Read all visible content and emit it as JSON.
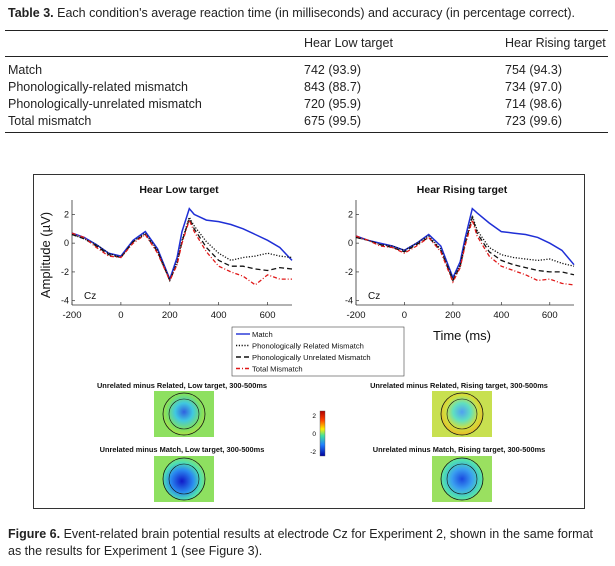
{
  "table": {
    "caption_label": "Table 3.",
    "caption_text": "Each condition's average reaction time (in milliseconds) and accuracy (in percentage correct).",
    "columns": [
      "Hear Low target",
      "Hear Rising target"
    ],
    "rows": [
      {
        "label": "Match",
        "low": "742 (93.9)",
        "rising": "754 (94.3)"
      },
      {
        "label": "Phonologically-related mismatch",
        "low": "843 (88.7)",
        "rising": "734 (97.0)"
      },
      {
        "label": "Phonologically-unrelated mismatch",
        "low": "720 (95.9)",
        "rising": "714 (98.6)"
      },
      {
        "label": "Total mismatch",
        "low": "675 (99.5)",
        "rising": "723 (99.6)"
      }
    ]
  },
  "figure": {
    "ylabel": "Amplitude (µV)",
    "xlabel": "Time (ms)",
    "electrode": "Cz",
    "colorbar_ticks": [
      "2",
      "0",
      "-2"
    ],
    "topo_titles": [
      "Unrelated minus Related, Low target, 300-500ms",
      "Unrelated minus Related, Rising target, 300-500ms",
      "Unrelated minus Match, Low target, 300-500ms",
      "Unrelated minus Match, Rising target, 300-500ms"
    ],
    "caption_label": "Figure 6.",
    "caption_text": "Event-related brain potential results at electrode Cz for Experiment 2, shown in the same format as the results for Experiment 1 (see Figure 3)."
  },
  "chart_data": [
    {
      "type": "line",
      "title": "Hear Low target",
      "xlabel": "",
      "ylabel": "Amplitude (µV)",
      "xlim": [
        -200,
        700
      ],
      "ylim": [
        -4.3,
        3
      ],
      "xticks": [
        -200,
        0,
        200,
        400,
        600
      ],
      "yticks": [
        2,
        0,
        -2,
        -4
      ],
      "legend_position": "bottom-center",
      "x": [
        -200,
        -150,
        -100,
        -50,
        0,
        50,
        100,
        150,
        200,
        230,
        250,
        280,
        300,
        350,
        400,
        450,
        500,
        550,
        600,
        650,
        700
      ],
      "series": [
        {
          "name": "Match",
          "color": "#1f2fd6",
          "dash": "solid",
          "values": [
            0.7,
            0.4,
            -0.1,
            -0.7,
            -0.9,
            0.2,
            0.8,
            -0.4,
            -2.5,
            -1.0,
            0.8,
            2.4,
            2.0,
            1.6,
            1.5,
            1.3,
            1.0,
            0.6,
            0.2,
            -0.3,
            -1.2
          ]
        },
        {
          "name": "Phonologically Related Mismatch",
          "color": "#111111",
          "dash": "dotted",
          "values": [
            0.6,
            0.3,
            -0.1,
            -0.7,
            -1.0,
            0.1,
            0.7,
            -0.5,
            -2.6,
            -1.3,
            0.2,
            1.8,
            1.2,
            0.1,
            -0.7,
            -1.2,
            -1.0,
            -0.9,
            -0.7,
            -0.9,
            -1.0
          ]
        },
        {
          "name": "Phonologically Unrelated Mismatch",
          "color": "#111111",
          "dash": "dashed",
          "values": [
            0.6,
            0.3,
            -0.2,
            -0.8,
            -1.0,
            0.1,
            0.6,
            -0.6,
            -2.6,
            -1.4,
            0.1,
            1.7,
            1.0,
            -0.3,
            -1.2,
            -1.6,
            -1.6,
            -1.8,
            -1.9,
            -1.7,
            -1.8
          ]
        },
        {
          "name": "Total Mismatch",
          "color": "#e01818",
          "dash": "dashdot",
          "values": [
            0.7,
            0.4,
            -0.3,
            -0.9,
            -1.0,
            0.0,
            0.6,
            -0.7,
            -2.6,
            -1.5,
            0.0,
            1.6,
            0.8,
            -0.6,
            -1.6,
            -2.0,
            -2.3,
            -2.9,
            -2.2,
            -2.5,
            -2.5
          ]
        }
      ]
    },
    {
      "type": "line",
      "title": "Hear Rising target",
      "xlabel": "Time (ms)",
      "ylabel": "",
      "xlim": [
        -200,
        700
      ],
      "ylim": [
        -4.3,
        3
      ],
      "xticks": [
        -200,
        0,
        200,
        400,
        600
      ],
      "yticks": [
        2,
        0,
        -2,
        -4
      ],
      "legend_position": "bottom-center",
      "x": [
        -200,
        -150,
        -100,
        -50,
        0,
        50,
        100,
        150,
        200,
        230,
        250,
        280,
        300,
        350,
        400,
        450,
        500,
        550,
        600,
        650,
        700
      ],
      "series": [
        {
          "name": "Match",
          "color": "#1f2fd6",
          "dash": "solid",
          "values": [
            0.5,
            0.2,
            0.0,
            -0.2,
            -0.5,
            0.0,
            0.6,
            -0.2,
            -2.4,
            -1.3,
            0.3,
            2.4,
            2.1,
            1.4,
            0.8,
            0.7,
            0.6,
            0.4,
            0.0,
            -0.5,
            -1.5
          ]
        },
        {
          "name": "Phonologically Related Mismatch",
          "color": "#111111",
          "dash": "dotted",
          "values": [
            0.4,
            0.2,
            -0.1,
            -0.2,
            -0.5,
            0.0,
            0.5,
            -0.4,
            -2.5,
            -1.5,
            0.0,
            1.9,
            0.9,
            -0.3,
            -0.8,
            -1.0,
            -1.1,
            -1.2,
            -1.1,
            -1.4,
            -1.6
          ]
        },
        {
          "name": "Phonologically Unrelated Mismatch",
          "color": "#111111",
          "dash": "dashed",
          "values": [
            0.4,
            0.2,
            -0.1,
            -0.3,
            -0.6,
            -0.1,
            0.4,
            -0.5,
            -2.6,
            -1.6,
            -0.1,
            1.8,
            0.7,
            -0.6,
            -1.2,
            -1.5,
            -1.7,
            -1.9,
            -2.0,
            -2.0,
            -2.2
          ]
        },
        {
          "name": "Total Mismatch",
          "color": "#e01818",
          "dash": "dashdot",
          "values": [
            0.5,
            0.2,
            -0.2,
            -0.3,
            -0.7,
            -0.2,
            0.4,
            -0.6,
            -2.7,
            -1.7,
            -0.2,
            1.6,
            0.5,
            -0.9,
            -1.6,
            -1.9,
            -2.2,
            -2.6,
            -2.5,
            -2.8,
            -2.9
          ]
        }
      ]
    }
  ]
}
